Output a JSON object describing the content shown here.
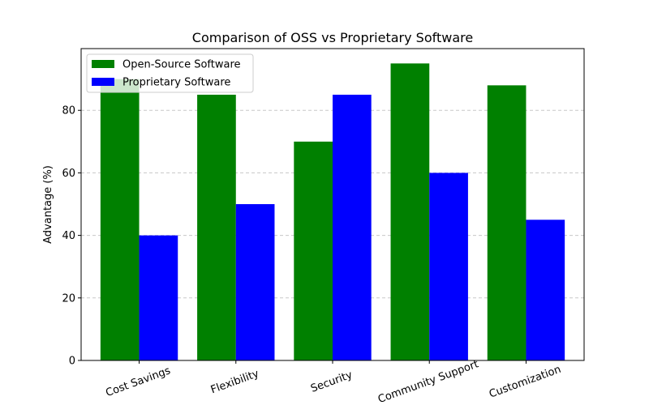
{
  "chart_data": {
    "type": "bar",
    "title": "Comparison of OSS vs Proprietary Software",
    "xlabel": "",
    "ylabel": "Advantage (%)",
    "categories": [
      "Cost Savings",
      "Flexibility",
      "Security",
      "Community Support",
      "Customization"
    ],
    "series": [
      {
        "name": "Open-Source Software",
        "values": [
          90,
          85,
          70,
          95,
          88
        ],
        "color": "#008000"
      },
      {
        "name": "Proprietary Software",
        "values": [
          40,
          50,
          85,
          60,
          45
        ],
        "color": "#0000ff"
      }
    ],
    "ylim": [
      0,
      99.75
    ],
    "yticks": [
      0,
      20,
      40,
      60,
      80
    ],
    "grid": true,
    "grid_axis": "y",
    "legend_position": "top-left",
    "xtick_rotation_deg": 20
  }
}
